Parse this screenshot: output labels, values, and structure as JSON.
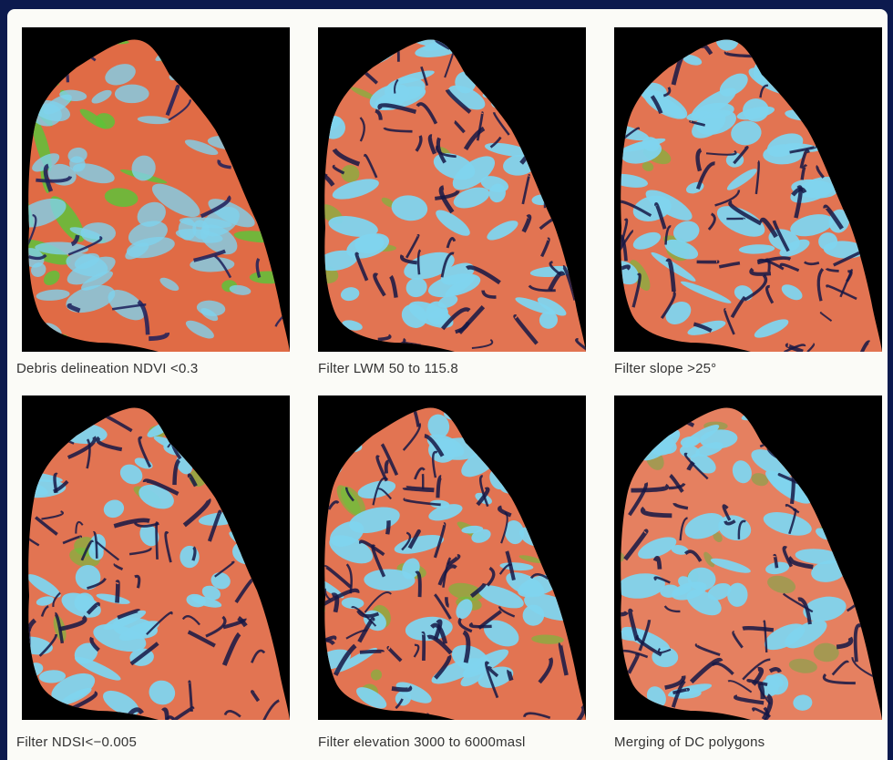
{
  "figure": {
    "panels": [
      {
        "caption": "Debris delineation NDVI <0.3",
        "palette": {
          "base": "#e06b45",
          "ice": "#7fd2ec",
          "veg": "#5ec23a",
          "shadow": "#1b1e5a"
        }
      },
      {
        "caption": "Filter LWM 50 to 115.8",
        "palette": {
          "base": "#e27452",
          "ice": "#80d4ee",
          "veg": "#6cc23a",
          "shadow": "#151745"
        }
      },
      {
        "caption": "Filter slope >25°",
        "palette": {
          "base": "#e27452",
          "ice": "#80d4ee",
          "veg": "#6cc23a",
          "shadow": "#151745"
        }
      },
      {
        "caption": "Filter NDSI<−0.005",
        "palette": {
          "base": "#e27452",
          "ice": "#80d4ee",
          "veg": "#6cc23a",
          "shadow": "#151745"
        }
      },
      {
        "caption": "Filter elevation 3000 to 6000masl",
        "palette": {
          "base": "#e27452",
          "ice": "#80d4ee",
          "veg": "#6cc23a",
          "shadow": "#151745"
        }
      },
      {
        "caption": "Merging of DC polygons",
        "palette": {
          "base": "#e58060",
          "ice": "#80d4ee",
          "veg": "#7aa84a",
          "shadow": "#151745"
        }
      }
    ]
  }
}
